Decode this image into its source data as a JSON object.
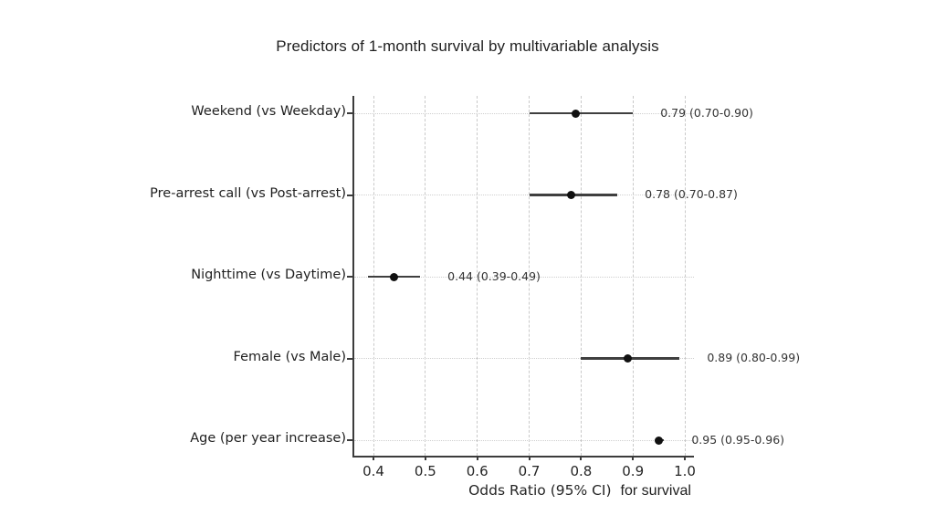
{
  "chart_data": {
    "type": "forest",
    "title": "Predictors of 1-month survival by multivariable analysis",
    "xlabel": "Odds Ratio (95% CI)",
    "xlabel_suffix": "for survival",
    "xlim": [
      0.363,
      1.0175
    ],
    "xticks": [
      0.4,
      0.5,
      0.6,
      0.7,
      0.8,
      0.9,
      1.0
    ],
    "grid": "both",
    "rows": [
      {
        "label": "Weekend (vs Weekday)",
        "or": 0.79,
        "ci_low": 0.7,
        "ci_high": 0.9,
        "annotation": "0.79 (0.70-0.90)"
      },
      {
        "label": "Pre-arrest call (vs Post-arrest)",
        "or": 0.78,
        "ci_low": 0.7,
        "ci_high": 0.87,
        "annotation": "0.78 (0.70-0.87)"
      },
      {
        "label": "Nighttime (vs Daytime)",
        "or": 0.44,
        "ci_low": 0.39,
        "ci_high": 0.49,
        "annotation": "0.44 (0.39-0.49)"
      },
      {
        "label": "Female (vs Male)",
        "or": 0.89,
        "ci_low": 0.8,
        "ci_high": 0.99,
        "annotation": "0.89 (0.80-0.99)"
      },
      {
        "label": "Age (per year increase)",
        "or": 0.95,
        "ci_low": 0.95,
        "ci_high": 0.96,
        "annotation": "0.95 (0.95-0.96)"
      }
    ],
    "colors": {
      "spine": "#3c3c3c",
      "grid_vertical": "#c9c9c9",
      "grid_horizontal": "#cfcfcf",
      "ci_line": "#3f3f3f",
      "point": "#111111",
      "text": "#262626",
      "annotation": "#333333",
      "background": "#ffffff"
    }
  }
}
